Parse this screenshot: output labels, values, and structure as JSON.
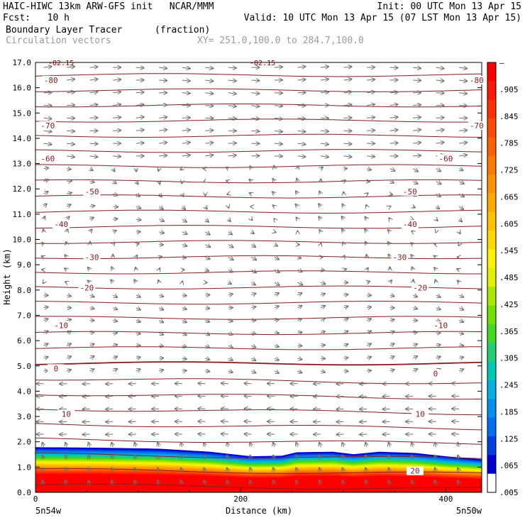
{
  "header": {
    "line1_left": "HAIC-HIWC 13km ARW-GFS init   NCAR/MMM",
    "line1_right": "Init: 00 UTC Mon 13 Apr 15",
    "line2_left": "Fcst:   10 h",
    "line2_right": "Valid: 10 UTC Mon 13 Apr 15 (07 LST Mon 13 Apr 15)",
    "field1_name": "Boundary Layer Tracer",
    "field1_units": "(fraction)",
    "field2_name": "Circulation vectors",
    "cross_section": "XY= 251.0,100.0 to 284.7,100.0"
  },
  "chart_data": {
    "type": "cross-section (filled contour + line contour + vectors)",
    "xlabel": "Distance (km)",
    "ylabel": "Height (km)",
    "xlim": [
      0,
      435
    ],
    "ylim": [
      0,
      17
    ],
    "x_ticks": [
      "0",
      "200",
      "400"
    ],
    "y_ticks": [
      "0.0",
      "1.0",
      "2.0",
      "3.0",
      "4.0",
      "5.0",
      "6.0",
      "7.0",
      "8.0",
      "9.0",
      "10.0",
      "11.0",
      "12.0",
      "13.0",
      "14.0",
      "15.0",
      "16.0",
      "17.0"
    ],
    "x_endpoint_left": "5n54w",
    "x_endpoint_right": "5n50w",
    "top_labels": [
      "-82.15",
      "-82.15"
    ],
    "colorbar": {
      "labels": [
        "–",
        ".905",
        ".845",
        ".785",
        ".725",
        ".665",
        ".605",
        ".545",
        ".485",
        ".425",
        ".365",
        ".305",
        ".245",
        ".185",
        ".125",
        ".065",
        ".005"
      ],
      "colors": [
        "#ff0000",
        "#ff1800",
        "#ff3000",
        "#ff4800",
        "#ff6000",
        "#ff7800",
        "#ff9000",
        "#ffa800",
        "#ffc000",
        "#ffd800",
        "#fff000",
        "#e0f000",
        "#a8e800",
        "#70e000",
        "#40d820",
        "#20d070",
        "#00c8b0",
        "#00b0e0",
        "#0090f0",
        "#0070f0",
        "#0040e0",
        "#0000d0"
      ],
      "bottom_color": "#ffffff"
    },
    "tracer_top_km": [
      [
        0,
        1.78
      ],
      [
        60,
        1.76
      ],
      [
        120,
        1.72
      ],
      [
        170,
        1.6
      ],
      [
        210,
        1.42
      ],
      [
        240,
        1.44
      ],
      [
        255,
        1.58
      ],
      [
        290,
        1.6
      ],
      [
        310,
        1.5
      ],
      [
        335,
        1.6
      ],
      [
        370,
        1.55
      ],
      [
        400,
        1.42
      ],
      [
        435,
        1.3
      ]
    ],
    "contour_labels": [
      {
        "label": "-80",
        "x": 15,
        "y": 16.3
      },
      {
        "label": "-80",
        "x": 430,
        "y": 16.3
      },
      {
        "label": "-70",
        "x": 12,
        "y": 14.5
      },
      {
        "label": "-70",
        "x": 430,
        "y": 14.5
      },
      {
        "label": "-60",
        "x": 12,
        "y": 13.2
      },
      {
        "label": "-60",
        "x": 400,
        "y": 13.2
      },
      {
        "label": "-50",
        "x": 55,
        "y": 11.9
      },
      {
        "label": "-50",
        "x": 365,
        "y": 11.9
      },
      {
        "label": "-40",
        "x": 25,
        "y": 10.6
      },
      {
        "label": "-40",
        "x": 365,
        "y": 10.6
      },
      {
        "label": "-30",
        "x": 55,
        "y": 9.3
      },
      {
        "label": "-30",
        "x": 355,
        "y": 9.3
      },
      {
        "label": "-20",
        "x": 50,
        "y": 8.1
      },
      {
        "label": "-20",
        "x": 375,
        "y": 8.1
      },
      {
        "label": "-10",
        "x": 25,
        "y": 6.6
      },
      {
        "label": "-10",
        "x": 395,
        "y": 6.6
      },
      {
        "label": "0",
        "x": 20,
        "y": 4.9
      },
      {
        "label": "0",
        "x": 390,
        "y": 4.7
      },
      {
        "label": "10",
        "x": 30,
        "y": 3.1
      },
      {
        "label": "10",
        "x": 375,
        "y": 3.1
      },
      {
        "label": "20",
        "x": 370,
        "y": 0.85
      }
    ]
  }
}
